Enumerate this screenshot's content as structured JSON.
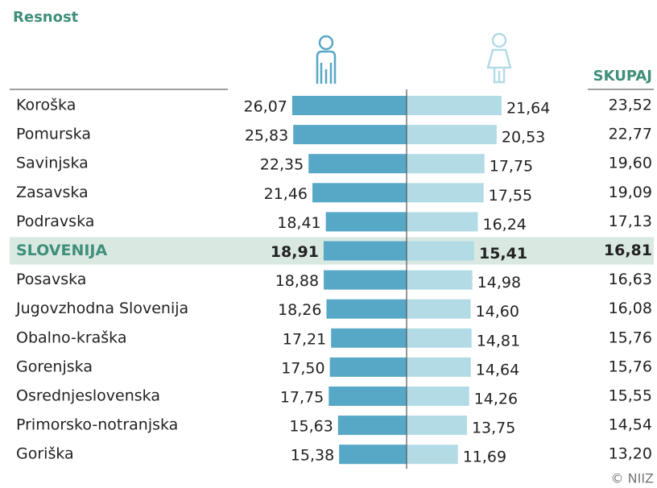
{
  "chart_data": {
    "type": "butterfly",
    "title": "Resnost",
    "categories": [
      "Koroška",
      "Pomurska",
      "Savinjska",
      "Zasavska",
      "Podravska",
      "SLOVENIJA",
      "Posavska",
      "Jugovzhodna Slovenija",
      "Obalno-kraška",
      "Gorenjska",
      "Osrednjeslovenska",
      "Primorsko-notranjska",
      "Goriška"
    ],
    "highlight": 5,
    "series": [
      {
        "color": "#57a7c6",
        "values": [
          26.07,
          25.83,
          22.35,
          21.46,
          18.41,
          18.91,
          18.88,
          18.26,
          17.21,
          17.5,
          17.75,
          15.63,
          15.38
        ],
        "value_labels": [
          "26,07",
          "25,83",
          "22,35",
          "21,46",
          "18,41",
          "18,91",
          "18,88",
          "18,26",
          "17,21",
          "17,50",
          "17,75",
          "15,63",
          "15,38"
        ]
      },
      {
        "color": "#b3dbe6",
        "values": [
          21.64,
          20.53,
          17.75,
          17.55,
          16.24,
          15.41,
          14.98,
          14.6,
          14.81,
          14.64,
          14.26,
          13.75,
          11.69
        ],
        "value_labels": [
          "21,64",
          "20,53",
          "17,75",
          "17,55",
          "16,24",
          "15,41",
          "14,98",
          "14,60",
          "14,81",
          "14,64",
          "14,26",
          "13,75",
          "11,69"
        ]
      }
    ],
    "totals": {
      "name": "SKUPAJ",
      "values": [
        23.52,
        22.77,
        19.6,
        19.09,
        17.13,
        16.81,
        16.63,
        16.08,
        15.76,
        15.76,
        15.55,
        14.54,
        13.2
      ],
      "value_labels": [
        "23,52",
        "22,77",
        "19,60",
        "19,09",
        "17,13",
        "16,81",
        "16,63",
        "16,08",
        "15,76",
        "15,76",
        "15,55",
        "14,54",
        "13,20"
      ]
    },
    "source": "© NIIZ"
  }
}
